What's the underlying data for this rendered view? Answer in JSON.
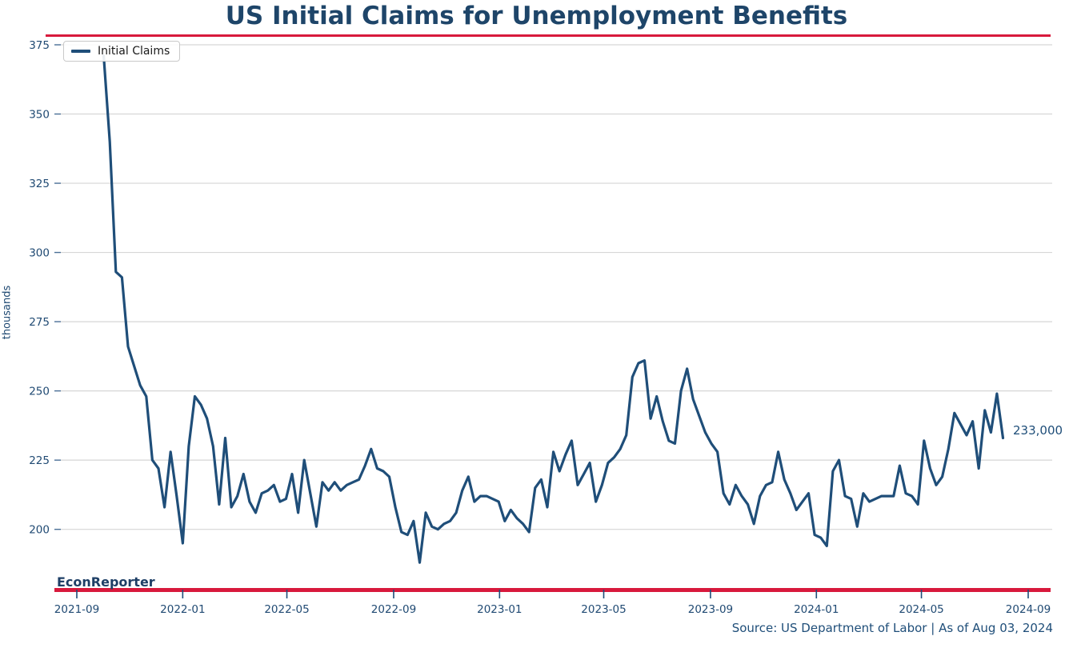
{
  "header": {
    "title": "US Initial Claims for Unemployment Benefits"
  },
  "legend": {
    "label": "Initial Claims"
  },
  "footer": {
    "watermark": "EconReporter",
    "source": "Source: US Department of Labor | As of Aug 03, 2024"
  },
  "colors": {
    "line": "#1f4e79",
    "accent_rule": "#d8193c",
    "text_navy": "#204a73",
    "gridline": "#d6d6d6"
  },
  "chart_data": {
    "type": "line",
    "title": "US Initial Claims for Unemployment Benefits",
    "xlabel": "",
    "ylabel": "thousands",
    "series_name": "Initial Claims",
    "last_value_label": "233,000",
    "legend_position": "upper-left",
    "grid": "horizontal",
    "y_ticks": [
      200,
      225,
      250,
      275,
      300,
      325,
      350,
      375
    ],
    "ylim": [
      178,
      375
    ],
    "x_ticks": [
      "2021-09",
      "2022-01",
      "2022-05",
      "2022-09",
      "2023-01",
      "2023-05",
      "2023-09",
      "2024-01",
      "2024-05",
      "2024-09"
    ],
    "xlim": [
      "2021-09-01",
      "2024-09-01"
    ],
    "dates": [
      "2021-10-02",
      "2021-10-09",
      "2021-10-16",
      "2021-10-23",
      "2021-10-30",
      "2021-11-06",
      "2021-11-13",
      "2021-11-20",
      "2021-11-27",
      "2021-12-04",
      "2021-12-11",
      "2021-12-18",
      "2021-12-25",
      "2022-01-01",
      "2022-01-08",
      "2022-01-15",
      "2022-01-22",
      "2022-01-29",
      "2022-02-05",
      "2022-02-12",
      "2022-02-19",
      "2022-02-26",
      "2022-03-05",
      "2022-03-12",
      "2022-03-19",
      "2022-03-26",
      "2022-04-02",
      "2022-04-09",
      "2022-04-16",
      "2022-04-23",
      "2022-04-30",
      "2022-05-07",
      "2022-05-14",
      "2022-05-21",
      "2022-05-28",
      "2022-06-04",
      "2022-06-11",
      "2022-06-18",
      "2022-06-25",
      "2022-07-02",
      "2022-07-09",
      "2022-07-16",
      "2022-07-23",
      "2022-07-30",
      "2022-08-06",
      "2022-08-13",
      "2022-08-20",
      "2022-08-27",
      "2022-09-03",
      "2022-09-10",
      "2022-09-17",
      "2022-09-24",
      "2022-10-01",
      "2022-10-08",
      "2022-10-15",
      "2022-10-22",
      "2022-10-29",
      "2022-11-05",
      "2022-11-12",
      "2022-11-19",
      "2022-11-26",
      "2022-12-03",
      "2022-12-10",
      "2022-12-17",
      "2022-12-24",
      "2022-12-31",
      "2023-01-07",
      "2023-01-14",
      "2023-01-21",
      "2023-01-28",
      "2023-02-04",
      "2023-02-11",
      "2023-02-18",
      "2023-02-25",
      "2023-03-04",
      "2023-03-11",
      "2023-03-18",
      "2023-03-25",
      "2023-04-01",
      "2023-04-08",
      "2023-04-15",
      "2023-04-22",
      "2023-04-29",
      "2023-05-06",
      "2023-05-13",
      "2023-05-20",
      "2023-05-27",
      "2023-06-03",
      "2023-06-10",
      "2023-06-17",
      "2023-06-24",
      "2023-07-01",
      "2023-07-08",
      "2023-07-15",
      "2023-07-22",
      "2023-07-29",
      "2023-08-05",
      "2023-08-12",
      "2023-08-19",
      "2023-08-26",
      "2023-09-02",
      "2023-09-09",
      "2023-09-16",
      "2023-09-23",
      "2023-09-30",
      "2023-10-07",
      "2023-10-14",
      "2023-10-21",
      "2023-10-28",
      "2023-11-04",
      "2023-11-11",
      "2023-11-18",
      "2023-11-25",
      "2023-12-02",
      "2023-12-09",
      "2023-12-16",
      "2023-12-23",
      "2023-12-30",
      "2024-01-06",
      "2024-01-13",
      "2024-01-20",
      "2024-01-27",
      "2024-02-03",
      "2024-02-10",
      "2024-02-17",
      "2024-02-24",
      "2024-03-02",
      "2024-03-09",
      "2024-03-16",
      "2024-03-23",
      "2024-03-30",
      "2024-04-06",
      "2024-04-13",
      "2024-04-20",
      "2024-04-27",
      "2024-05-04",
      "2024-05-11",
      "2024-05-18",
      "2024-05-25",
      "2024-06-01",
      "2024-06-08",
      "2024-06-15",
      "2024-06-22",
      "2024-06-29",
      "2024-07-06",
      "2024-07-13",
      "2024-07-20",
      "2024-07-27",
      "2024-08-03"
    ],
    "values": [
      371,
      340,
      293,
      291,
      266,
      259,
      252,
      248,
      225,
      222,
      208,
      228,
      212,
      195,
      230,
      248,
      245,
      240,
      230,
      209,
      233,
      208,
      212,
      220,
      210,
      206,
      213,
      214,
      216,
      210,
      211,
      220,
      206,
      225,
      213,
      201,
      217,
      214,
      217,
      214,
      216,
      217,
      218,
      223,
      229,
      222,
      221,
      219,
      208,
      199,
      198,
      203,
      188,
      206,
      201,
      200,
      202,
      203,
      206,
      214,
      219,
      210,
      212,
      212,
      211,
      210,
      203,
      207,
      204,
      202,
      199,
      215,
      218,
      208,
      228,
      221,
      227,
      232,
      216,
      220,
      224,
      210,
      216,
      224,
      226,
      229,
      234,
      255,
      260,
      261,
      240,
      248,
      239,
      232,
      231,
      250,
      258,
      247,
      241,
      235,
      231,
      228,
      213,
      209,
      216,
      212,
      209,
      202,
      212,
      216,
      217,
      228,
      218,
      213,
      207,
      210,
      213,
      198,
      197,
      194,
      221,
      225,
      212,
      211,
      201,
      213,
      210,
      211,
      212,
      212,
      212,
      223,
      213,
      212,
      209,
      232,
      222,
      216,
      219,
      229,
      242,
      238,
      234,
      239,
      222,
      243,
      235,
      249,
      233
    ]
  }
}
